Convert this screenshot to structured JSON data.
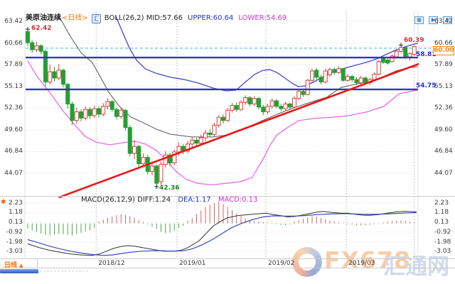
{
  "header": {
    "symbol": "美原油连续",
    "period": "<日线>",
    "boll": "BOLL(26,2) MID:57.66",
    "upper": "UPPER:60.64",
    "lower": "LOWER:54.69"
  },
  "icons": {
    "app_logo_glyph": "汇"
  },
  "toolbar": {
    "buttons": [
      {
        "glyph": "▦"
      },
      {
        "glyph": "▶"
      },
      {
        "glyph": "≡"
      }
    ]
  },
  "macd_header": {
    "label": "MACD(26,12,9)",
    "diff": "DIFF:1.24",
    "dea": "DEA:1.17",
    "macd": "MACD:0.13"
  },
  "tags": {
    "start_high": "62.42",
    "swing_high": "60.39",
    "low": "42.36",
    "resistance": "58.81",
    "support": "54.75",
    "alert": "60.00"
  },
  "annotation_marker": "✱",
  "bottom": {
    "tab_label": "日线",
    "tab_arrow": "▲"
  },
  "watermark": {
    "brand": "FX678",
    "brand_cn": "汇通网"
  },
  "colors": {
    "up_candle": "#d9413f",
    "down_candle": "#22a033",
    "boll_upper": "#4646c8",
    "boll_mid": "#555555",
    "boll_lower": "#ee66ee",
    "drawn_line_blue": "#3333cc",
    "trend_red": "#ee1515",
    "alert_cyan": "#3db0e8",
    "hist_pos": "#cc6666",
    "hist_neg": "#4ca64c",
    "diff_line": "#333333",
    "dea_line": "#3a4ab8",
    "tag_orange": "#ef8913"
  },
  "chart_data": {
    "type": "candlestick+macd",
    "title": "美原油连续(日线)",
    "main_ylim": [
      41.0,
      64.2
    ],
    "price_ticks": [
      63.42,
      60.66,
      57.89,
      55.13,
      52.36,
      49.6,
      46.84,
      44.07
    ],
    "macd_ticks": [
      2.23,
      1.18,
      0.13,
      -0.92,
      -1.98,
      -3.03
    ],
    "months": [
      {
        "index": 15.4,
        "label": "2018/12"
      },
      {
        "index": 33.6,
        "label": "2019/01"
      },
      {
        "index": 53.6,
        "label": "2019/02"
      },
      {
        "index": 71.7,
        "label": "2019/03"
      },
      {
        "index": 87.0,
        "label": ""
      }
    ],
    "candles": [
      [
        62.1,
        60.7,
        60.3,
        62.42
      ],
      [
        60.7,
        59.8,
        59.4,
        61.0
      ],
      [
        59.8,
        60.3,
        59.5,
        60.8
      ],
      [
        60.3,
        59.6,
        59.2,
        60.5
      ],
      [
        59.6,
        55.7,
        55.2,
        59.8
      ],
      [
        55.7,
        57.0,
        55.4,
        57.9
      ],
      [
        57.0,
        56.2,
        55.8,
        57.6
      ],
      [
        56.2,
        57.2,
        55.9,
        58.0
      ],
      [
        57.2,
        55.4,
        55.0,
        57.4
      ],
      [
        55.4,
        52.9,
        52.3,
        55.6
      ],
      [
        52.9,
        50.8,
        50.2,
        53.2
      ],
      [
        50.8,
        51.9,
        50.4,
        52.4
      ],
      [
        51.9,
        51.1,
        50.7,
        52.2
      ],
      [
        51.1,
        52.2,
        50.8,
        52.6
      ],
      [
        52.2,
        51.4,
        51.0,
        52.5
      ],
      [
        51.4,
        52.3,
        51.1,
        52.7
      ],
      [
        52.3,
        51.6,
        51.2,
        52.6
      ],
      [
        51.6,
        52.6,
        51.3,
        53.0
      ],
      [
        52.6,
        53.2,
        52.2,
        53.6
      ],
      [
        53.2,
        52.2,
        51.9,
        53.4
      ],
      [
        52.2,
        51.3,
        50.9,
        52.4
      ],
      [
        51.3,
        52.1,
        51.0,
        52.5
      ],
      [
        52.1,
        49.9,
        49.5,
        52.2
      ],
      [
        49.9,
        46.6,
        46.2,
        50.2
      ],
      [
        46.6,
        47.5,
        45.9,
        48.3
      ],
      [
        47.5,
        45.3,
        44.9,
        47.7
      ],
      [
        45.3,
        46.1,
        44.9,
        46.6
      ],
      [
        46.1,
        44.3,
        43.9,
        46.4
      ],
      [
        44.3,
        45.0,
        43.8,
        45.6
      ],
      [
        45.0,
        42.8,
        42.36,
        45.2
      ],
      [
        43.0,
        45.2,
        42.6,
        45.6
      ],
      [
        45.2,
        46.4,
        44.8,
        46.9
      ],
      [
        46.4,
        45.4,
        45.0,
        46.7
      ],
      [
        45.4,
        46.8,
        45.1,
        47.1
      ],
      [
        46.8,
        47.5,
        46.3,
        48.0
      ],
      [
        47.5,
        46.9,
        46.5,
        47.8
      ],
      [
        46.9,
        47.8,
        46.6,
        48.2
      ],
      [
        47.8,
        48.3,
        47.4,
        48.7
      ],
      [
        48.3,
        47.9,
        47.5,
        48.6
      ],
      [
        47.9,
        48.6,
        47.6,
        49.0
      ],
      [
        48.6,
        49.2,
        48.2,
        49.6
      ],
      [
        49.2,
        49.0,
        48.6,
        49.7
      ],
      [
        49.0,
        50.2,
        48.8,
        50.5
      ],
      [
        50.2,
        51.2,
        49.9,
        51.5
      ],
      [
        51.2,
        50.8,
        50.4,
        51.6
      ],
      [
        50.8,
        52.1,
        50.6,
        52.4
      ],
      [
        52.1,
        52.7,
        51.8,
        53.0
      ],
      [
        52.7,
        52.2,
        51.9,
        53.1
      ],
      [
        52.2,
        53.1,
        52.0,
        53.4
      ],
      [
        53.1,
        53.7,
        52.8,
        54.0
      ],
      [
        53.7,
        52.9,
        52.6,
        53.9
      ],
      [
        52.9,
        53.6,
        52.6,
        53.9
      ],
      [
        53.6,
        52.5,
        52.2,
        53.8
      ],
      [
        52.5,
        51.9,
        51.5,
        52.8
      ],
      [
        51.9,
        52.6,
        51.6,
        52.9
      ],
      [
        52.6,
        53.3,
        52.3,
        53.6
      ],
      [
        53.3,
        52.6,
        52.3,
        53.5
      ],
      [
        52.6,
        52.3,
        52.0,
        52.9
      ],
      [
        52.3,
        52.9,
        52.1,
        53.2
      ],
      [
        52.9,
        52.5,
        52.2,
        53.1
      ],
      [
        52.5,
        53.6,
        52.4,
        53.9
      ],
      [
        53.6,
        54.5,
        53.4,
        54.8
      ],
      [
        54.5,
        54.1,
        53.8,
        54.7
      ],
      [
        54.1,
        55.9,
        54.0,
        56.1
      ],
      [
        55.9,
        57.1,
        55.7,
        57.4
      ],
      [
        57.2,
        56.3,
        56.0,
        57.5
      ],
      [
        56.3,
        55.7,
        55.4,
        56.6
      ],
      [
        55.7,
        57.1,
        55.5,
        57.4
      ],
      [
        56.6,
        57.3,
        56.4,
        57.5
      ],
      [
        57.3,
        56.9,
        56.6,
        57.5
      ],
      [
        56.9,
        57.4,
        56.7,
        57.7
      ],
      [
        57.4,
        55.9,
        55.7,
        57.5
      ],
      [
        55.9,
        56.4,
        55.7,
        56.7
      ],
      [
        56.4,
        56.0,
        55.7,
        56.6
      ],
      [
        56.0,
        55.6,
        55.3,
        56.3
      ],
      [
        55.6,
        56.2,
        55.4,
        56.5
      ],
      [
        56.2,
        55.6,
        55.4,
        56.4
      ],
      [
        55.6,
        56.0,
        55.3,
        56.2
      ],
      [
        56.0,
        56.7,
        55.8,
        56.9
      ],
      [
        56.7,
        58.3,
        56.5,
        58.5
      ],
      [
        58.7,
        58.2,
        58.0,
        58.9
      ],
      [
        58.5,
        58.1,
        57.9,
        58.7
      ],
      [
        58.3,
        59.0,
        58.2,
        59.2
      ],
      [
        58.9,
        59.6,
        58.7,
        59.9
      ],
      [
        59.6,
        60.1,
        59.4,
        60.39
      ],
      [
        60.1,
        58.9,
        58.6,
        60.2
      ],
      [
        58.9,
        59.3,
        58.4,
        59.5
      ],
      [
        59.2,
        60.2,
        59.0,
        60.35
      ]
    ],
    "boll": {
      "upper": [
        [
          19.8,
          64.1
        ],
        [
          21.3,
          62.1
        ],
        [
          22.9,
          60.0
        ],
        [
          24.5,
          58.45
        ],
        [
          26.5,
          57.36
        ],
        [
          28.9,
          56.8
        ],
        [
          32.1,
          56.3
        ],
        [
          35.3,
          56.0
        ],
        [
          38.5,
          55.55
        ],
        [
          41.7,
          54.93
        ],
        [
          44.6,
          54.56
        ],
        [
          46.9,
          54.65
        ],
        [
          48.9,
          55.65
        ],
        [
          51,
          56.64
        ],
        [
          52.9,
          57.18
        ],
        [
          54.5,
          57.27
        ],
        [
          56.1,
          56.9
        ],
        [
          58.1,
          56.1
        ],
        [
          59.7,
          55.47
        ],
        [
          60.9,
          55.11
        ],
        [
          62.5,
          55.2
        ],
        [
          64.5,
          55.74
        ],
        [
          66.5,
          56.37
        ],
        [
          68.9,
          57.0
        ],
        [
          71.3,
          57.45
        ],
        [
          73.7,
          57.82
        ],
        [
          76.1,
          58.18
        ],
        [
          78.5,
          58.63
        ],
        [
          80.9,
          59.26
        ],
        [
          83,
          59.8
        ],
        [
          84.9,
          60.17
        ],
        [
          86.5,
          60.44
        ],
        [
          87.8,
          60.64
        ]
      ],
      "mid": [
        [
          7,
          64.1
        ],
        [
          9.7,
          61.4
        ],
        [
          12.1,
          59.35
        ],
        [
          14.5,
          58.2
        ],
        [
          16.5,
          56.2
        ],
        [
          18.2,
          54.4
        ],
        [
          20.6,
          52.6
        ],
        [
          23.3,
          51.2
        ],
        [
          25.7,
          50.6
        ],
        [
          28.9,
          49.7
        ],
        [
          32.1,
          49.05
        ],
        [
          36.9,
          48.7
        ],
        [
          41.7,
          48.7
        ],
        [
          44.9,
          48.95
        ],
        [
          48.1,
          49.6
        ],
        [
          51.3,
          50.4
        ],
        [
          54.5,
          51.2
        ],
        [
          57.7,
          51.95
        ],
        [
          60.9,
          52.6
        ],
        [
          64.1,
          53.2
        ],
        [
          67.3,
          53.75
        ],
        [
          70.5,
          55.0
        ],
        [
          73.7,
          55.4
        ],
        [
          76.9,
          55.75
        ],
        [
          80.1,
          56.4
        ],
        [
          82.9,
          57.1
        ],
        [
          85.3,
          57.45
        ],
        [
          87.8,
          57.66
        ]
      ],
      "lower": [
        [
          0,
          58.4
        ],
        [
          2,
          56.5
        ],
        [
          4.9,
          54.4
        ],
        [
          8.1,
          51.9
        ],
        [
          10.5,
          50.3
        ],
        [
          12.9,
          48.8
        ],
        [
          15.3,
          48.05
        ],
        [
          18.5,
          47.7
        ],
        [
          21.7,
          48.0
        ],
        [
          24.1,
          48.15
        ],
        [
          26.5,
          47.8
        ],
        [
          28.9,
          47.0
        ],
        [
          31.3,
          45.7
        ],
        [
          33.4,
          44.3
        ],
        [
          35.7,
          43.3
        ],
        [
          38.2,
          42.8
        ],
        [
          41.4,
          42.6
        ],
        [
          44.6,
          42.8
        ],
        [
          47.8,
          43.0
        ],
        [
          50.5,
          43.55
        ],
        [
          52.9,
          45.8
        ],
        [
          54.5,
          47.6
        ],
        [
          56.1,
          48.96
        ],
        [
          58.5,
          49.9
        ],
        [
          60.9,
          50.77
        ],
        [
          64.1,
          51.04
        ],
        [
          68.9,
          51.22
        ],
        [
          72.1,
          51.4
        ],
        [
          76.1,
          51.85
        ],
        [
          80.1,
          52.58
        ],
        [
          83.6,
          54.2
        ],
        [
          87.8,
          54.69
        ]
      ]
    },
    "drawn_lines": {
      "alert_level": 60.0,
      "resistance_level": 58.81,
      "support_level": 54.75,
      "trend": {
        "from": [
          7,
          41.0
        ],
        "to": [
          88.5,
          58.1
        ]
      }
    },
    "markers": {
      "start_high": {
        "index": 0,
        "price": 62.42
      },
      "swing_high": {
        "index": 84,
        "price": 60.39
      },
      "low": {
        "index": 29,
        "price": 42.36
      }
    },
    "macd": {
      "hist": [
        -0.55,
        -0.75,
        -0.95,
        -1.1,
        -1.25,
        -1.3,
        -1.2,
        -1.1,
        -1.15,
        -1.25,
        -1.3,
        -1.15,
        -1.0,
        -0.85,
        -0.7,
        -0.5,
        0.2,
        0.4,
        0.6,
        0.75,
        0.9,
        1.0,
        0.95,
        0.8,
        0.6,
        0.35,
        0.15,
        -0.1,
        -0.35,
        -0.6,
        -0.9,
        -1.05,
        -1.0,
        -0.8,
        -0.5,
        -0.25,
        0.3,
        0.6,
        1.0,
        1.4,
        1.75,
        2.0,
        2.2,
        2.3,
        2.1,
        1.8,
        1.45,
        1.1,
        0.8,
        0.55,
        0.35,
        0.25,
        0.2,
        0.15,
        0.1,
        0.05,
        -0.1,
        -0.15,
        -0.18,
        -0.12,
        0.2,
        0.35,
        0.5,
        0.65,
        0.8,
        0.75,
        0.6,
        0.45,
        0.3,
        0.2,
        0.12,
        0.06,
        -0.08,
        -0.12,
        -0.18,
        -0.2,
        -0.18,
        -0.15,
        -0.1,
        -0.05,
        0.1,
        0.18,
        0.25,
        0.3,
        0.32,
        0.28,
        0.2,
        0.13
      ],
      "diff": [
        [
          0,
          -2.2
        ],
        [
          2.5,
          -2.6
        ],
        [
          4.9,
          -2.9
        ],
        [
          7.3,
          -3.1
        ],
        [
          9.7,
          -3.3
        ],
        [
          12.1,
          -3.4
        ],
        [
          14.5,
          -3.45
        ],
        [
          16.1,
          -3.3
        ],
        [
          17.7,
          -3.0
        ],
        [
          19.3,
          -2.7
        ],
        [
          20.9,
          -2.5
        ],
        [
          22.5,
          -2.4
        ],
        [
          24.1,
          -2.45
        ],
        [
          25.7,
          -2.6
        ],
        [
          28.1,
          -2.8
        ],
        [
          30.5,
          -3.0
        ],
        [
          32.9,
          -3.0
        ],
        [
          34.5,
          -2.9
        ],
        [
          36.1,
          -2.6
        ],
        [
          38.5,
          -1.9
        ],
        [
          40.1,
          -1.1
        ],
        [
          41.7,
          -0.3
        ],
        [
          43.3,
          0.2
        ],
        [
          44.9,
          0.6
        ],
        [
          47.3,
          0.85
        ],
        [
          49.7,
          0.95
        ],
        [
          52.1,
          1.05
        ],
        [
          53.7,
          1.1
        ],
        [
          55.3,
          0.95
        ],
        [
          56.9,
          0.85
        ],
        [
          58.5,
          0.7
        ],
        [
          60.1,
          0.75
        ],
        [
          61.7,
          0.9
        ],
        [
          63.3,
          1.05
        ],
        [
          64.9,
          1.2
        ],
        [
          66.5,
          1.3
        ],
        [
          68.1,
          1.2
        ],
        [
          70.2,
          1.12
        ],
        [
          72.1,
          1.1
        ],
        [
          73.7,
          0.98
        ],
        [
          75.3,
          0.9
        ],
        [
          76.9,
          0.88
        ],
        [
          78.9,
          0.95
        ],
        [
          80.9,
          1.1
        ],
        [
          83,
          1.25
        ],
        [
          84.9,
          1.3
        ],
        [
          86.5,
          1.27
        ],
        [
          87.5,
          1.24
        ]
      ],
      "dea": [
        [
          0,
          -1.75
        ],
        [
          2.5,
          -2.1
        ],
        [
          4.9,
          -2.45
        ],
        [
          7.3,
          -2.75
        ],
        [
          9.7,
          -3.0
        ],
        [
          12.1,
          -3.2
        ],
        [
          14.5,
          -3.35
        ],
        [
          17,
          -3.45
        ],
        [
          19,
          -3.4
        ],
        [
          21,
          -3.25
        ],
        [
          23.3,
          -3.1
        ],
        [
          25.7,
          -3.0
        ],
        [
          28.1,
          -2.95
        ],
        [
          30.5,
          -2.95
        ],
        [
          32.9,
          -3.0
        ],
        [
          35,
          -2.95
        ],
        [
          37,
          -2.75
        ],
        [
          39.3,
          -2.3
        ],
        [
          41.7,
          -1.7
        ],
        [
          43.7,
          -1.1
        ],
        [
          45.7,
          -0.5
        ],
        [
          48.1,
          0.0
        ],
        [
          50.5,
          0.4
        ],
        [
          52.9,
          0.7
        ],
        [
          55.3,
          0.82
        ],
        [
          57.7,
          0.8
        ],
        [
          60.1,
          0.8
        ],
        [
          62.5,
          0.85
        ],
        [
          64.9,
          0.95
        ],
        [
          67.3,
          1.0
        ],
        [
          69.7,
          1.05
        ],
        [
          72.1,
          1.05
        ],
        [
          74.5,
          1.0
        ],
        [
          76.9,
          0.97
        ],
        [
          79.3,
          1.0
        ],
        [
          81.7,
          1.05
        ],
        [
          84.1,
          1.1
        ],
        [
          86.2,
          1.15
        ],
        [
          87.5,
          1.17
        ]
      ]
    }
  }
}
